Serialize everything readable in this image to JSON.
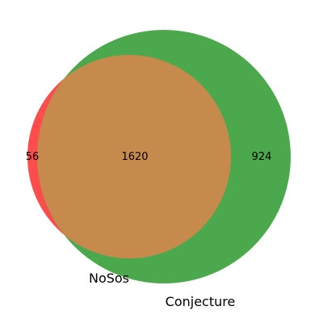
{
  "venn": {
    "sets": [
      {
        "name": "NoSos",
        "color": "#ff4c4c"
      },
      {
        "name": "Conjecture",
        "color": "#4ca84c"
      }
    ],
    "overlap_color": "#c68b4c",
    "counts": {
      "only_nosos": "56",
      "both": "1620",
      "only_conjecture": "924"
    }
  }
}
